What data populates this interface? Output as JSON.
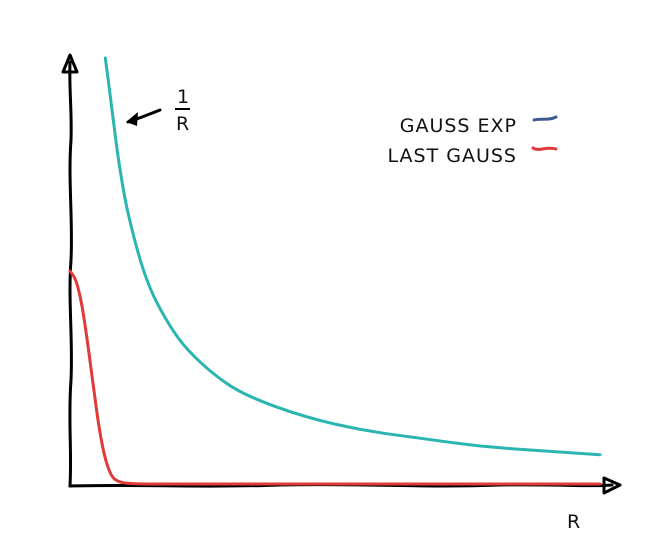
{
  "chart_data": {
    "type": "line",
    "title": "",
    "xlabel": "R",
    "ylabel": "",
    "xlim": [
      0,
      9
    ],
    "ylim": [
      0,
      1.6
    ],
    "grid": false,
    "legend_placement": "top-right",
    "legend": [
      {
        "label": "GAUSS EXP",
        "color": "#3b5b92"
      },
      {
        "label": "LAST GAUSS",
        "color": "#e03a3a"
      }
    ],
    "series": [
      {
        "color": "#2bb5b0",
        "annotation": {
          "numerator": "1",
          "denominator": "R"
        },
        "x": [
          0.6,
          0.7,
          0.8,
          0.9,
          1.0,
          1.2,
          1.4,
          1.7,
          2.0,
          2.5,
          3.0,
          4.0,
          5.0,
          6.0,
          7.0,
          8.0,
          9.0
        ],
        "y": [
          1.6,
          1.43,
          1.25,
          1.11,
          1.0,
          0.83,
          0.71,
          0.59,
          0.5,
          0.4,
          0.33,
          0.25,
          0.2,
          0.17,
          0.14,
          0.125,
          0.11
        ]
      },
      {
        "name": "LAST GAUSS",
        "color": "#e03a3a",
        "x": [
          0.0,
          0.1,
          0.2,
          0.3,
          0.4,
          0.5,
          0.6,
          0.7,
          0.8,
          1.0,
          2.0,
          4.0,
          6.0,
          9.0
        ],
        "y": [
          0.8,
          0.77,
          0.68,
          0.53,
          0.36,
          0.2,
          0.09,
          0.03,
          0.01,
          0.0,
          0.0,
          0.0,
          0.0,
          0.0
        ]
      }
    ]
  }
}
